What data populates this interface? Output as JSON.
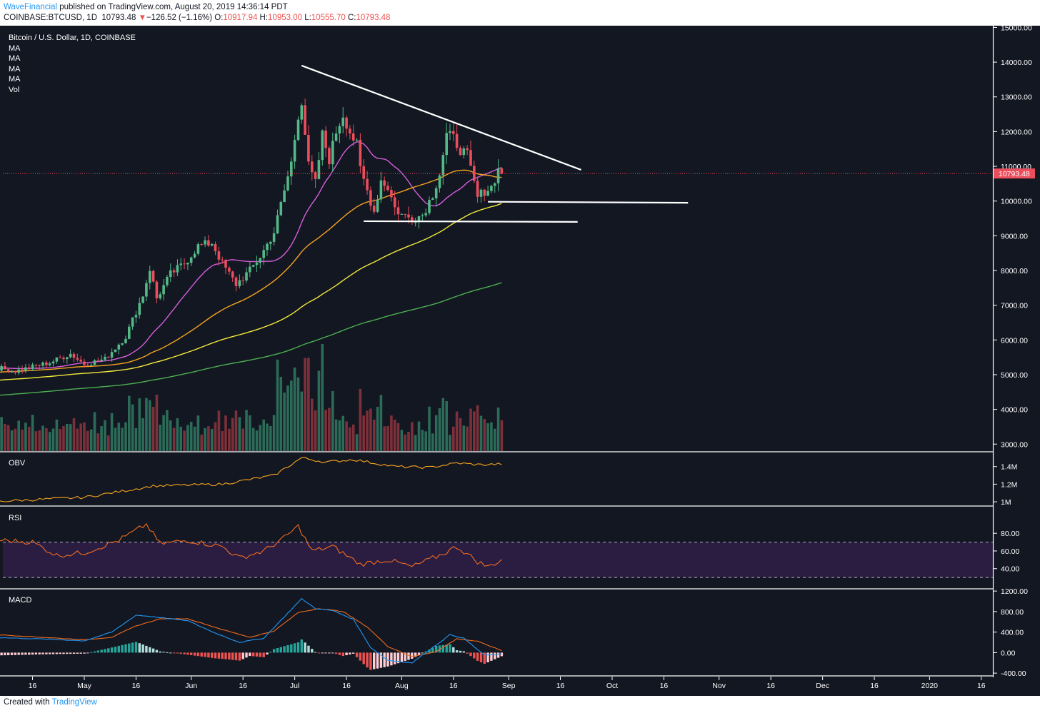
{
  "header": {
    "publisher": "WaveFinancial",
    "published_text": "published on TradingView.com, August 20, 2019 14:36:14 PDT",
    "symbol": "COINBASE:BTCUSD, 1D",
    "last": "10793.48",
    "change_arrow": "▼",
    "change": "−126.52 (−1.16%)",
    "o_label": "O:",
    "o_value": "10917.94",
    "h_label": "H:",
    "h_value": "10953.00",
    "l_label": "L:",
    "l_value": "10555.70",
    "c_label": "C:",
    "c_value": "10793.48"
  },
  "footer": {
    "created_with": "Created with",
    "logo_text": "TradingView"
  },
  "colors": {
    "background": "#131722",
    "up": "#53b987",
    "down": "#eb4d5c",
    "ma_fast": "#d55edb",
    "ma_mid": "#f7a41e",
    "ma_slow": "#f2e93a",
    "ma_long": "#4caf50",
    "obv": "#f7a41e",
    "rsi": "#f26b1d",
    "macd": "#2196f3",
    "signal": "#f26b1d",
    "rsi_band": "#2b1d42"
  },
  "chart_data": {
    "type": "candlestick",
    "legend": [
      "Bitcoin / U.S. Dollar, 1D, COINBASE",
      "MA",
      "MA",
      "MA",
      "MA",
      "Vol"
    ],
    "last_price_label": "10793.48",
    "last_price": 10793.48,
    "price_axis": {
      "range": [
        2800,
        15050
      ],
      "ticks": [
        "15000.00",
        "14000.00",
        "13000.00",
        "12000.00",
        "11000.00",
        "10000.00",
        "9000.00",
        "8000.00",
        "7000.00",
        "6000.00",
        "5000.00",
        "4000.00",
        "3000.00"
      ],
      "tick_values": [
        15000,
        14000,
        13000,
        12000,
        11000,
        10000,
        9000,
        8000,
        7000,
        6000,
        5000,
        4000,
        3000
      ]
    },
    "time_axis": {
      "labels": [
        "16",
        "May",
        "16",
        "Jun",
        "16",
        "Jul",
        "16",
        "Aug",
        "16",
        "Sep",
        "16",
        "Oct",
        "16",
        "Nov",
        "16",
        "Dec",
        "16",
        "2020",
        "16"
      ],
      "label_days": [
        -15,
        0,
        15,
        31,
        46,
        61,
        76,
        92,
        107,
        123,
        138,
        153,
        168,
        184,
        199,
        214,
        229,
        245,
        260
      ],
      "origin": "2019-05-01"
    },
    "price_anchors": [
      {
        "day": -28,
        "price": 5250
      },
      {
        "day": -20,
        "price": 5100
      },
      {
        "day": -10,
        "price": 5350
      },
      {
        "day": -4,
        "price": 5600
      },
      {
        "day": 0,
        "price": 5300
      },
      {
        "day": 6,
        "price": 5450
      },
      {
        "day": 12,
        "price": 6100
      },
      {
        "day": 17,
        "price": 7300
      },
      {
        "day": 19,
        "price": 8050
      },
      {
        "day": 21,
        "price": 7200
      },
      {
        "day": 25,
        "price": 7900
      },
      {
        "day": 29,
        "price": 8200
      },
      {
        "day": 33,
        "price": 8700
      },
      {
        "day": 37,
        "price": 8800
      },
      {
        "day": 40,
        "price": 8200
      },
      {
        "day": 44,
        "price": 7600
      },
      {
        "day": 48,
        "price": 8000
      },
      {
        "day": 51,
        "price": 8400
      },
      {
        "day": 55,
        "price": 9100
      },
      {
        "day": 58,
        "price": 10300
      },
      {
        "day": 60,
        "price": 11100
      },
      {
        "day": 62,
        "price": 12500
      },
      {
        "day": 63,
        "price": 12900
      },
      {
        "day": 65,
        "price": 11000
      },
      {
        "day": 67,
        "price": 10500
      },
      {
        "day": 69,
        "price": 11900
      },
      {
        "day": 71,
        "price": 11200
      },
      {
        "day": 73,
        "price": 12000
      },
      {
        "day": 75,
        "price": 12500
      },
      {
        "day": 77,
        "price": 12000
      },
      {
        "day": 79,
        "price": 11600
      },
      {
        "day": 80,
        "price": 10900
      },
      {
        "day": 82,
        "price": 10300
      },
      {
        "day": 84,
        "price": 9700
      },
      {
        "day": 86,
        "price": 10600
      },
      {
        "day": 88,
        "price": 10400
      },
      {
        "day": 90,
        "price": 9800
      },
      {
        "day": 92,
        "price": 9600
      },
      {
        "day": 95,
        "price": 9500
      },
      {
        "day": 98,
        "price": 9600
      },
      {
        "day": 101,
        "price": 10200
      },
      {
        "day": 103,
        "price": 10800
      },
      {
        "day": 105,
        "price": 11900
      },
      {
        "day": 107,
        "price": 11800
      },
      {
        "day": 109,
        "price": 11500
      },
      {
        "day": 111,
        "price": 11300
      },
      {
        "day": 113,
        "price": 10500
      },
      {
        "day": 114,
        "price": 10100
      },
      {
        "day": 116,
        "price": 10300
      },
      {
        "day": 118,
        "price": 10400
      },
      {
        "day": 120,
        "price": 10900
      },
      {
        "day": 121,
        "price": 10793
      }
    ],
    "ma_periods": [
      20,
      50,
      100,
      200
    ],
    "trendlines": [
      {
        "from": {
          "day": 63,
          "price": 13900
        },
        "to": {
          "day": 144,
          "price": 10900
        }
      },
      {
        "from": {
          "day": 81,
          "price": 9420
        },
        "to": {
          "day": 143,
          "price": 9400
        }
      },
      {
        "from": {
          "day": 117,
          "price": 9980
        },
        "to": {
          "day": 175,
          "price": 9950
        }
      }
    ],
    "obv": {
      "label": "OBV",
      "ticks": [
        "1.4M",
        "1.2M",
        "1M"
      ],
      "tick_values": [
        1.4,
        1.2,
        1.0
      ],
      "range_m": [
        0.96,
        1.56
      ],
      "anchors": [
        {
          "day": -28,
          "value": 1.0
        },
        {
          "day": 0,
          "value": 1.05
        },
        {
          "day": 20,
          "value": 1.18
        },
        {
          "day": 40,
          "value": 1.2
        },
        {
          "day": 55,
          "value": 1.3
        },
        {
          "day": 63,
          "value": 1.5
        },
        {
          "day": 70,
          "value": 1.45
        },
        {
          "day": 78,
          "value": 1.48
        },
        {
          "day": 90,
          "value": 1.4
        },
        {
          "day": 100,
          "value": 1.39
        },
        {
          "day": 108,
          "value": 1.44
        },
        {
          "day": 115,
          "value": 1.42
        },
        {
          "day": 121,
          "value": 1.43
        }
      ]
    },
    "rsi": {
      "label": "RSI",
      "ticks": [
        "80.00",
        "60.00",
        "40.00"
      ],
      "tick_values": [
        80,
        60,
        40
      ],
      "upper_band": 70,
      "lower_band": 30,
      "range": [
        18,
        110
      ],
      "anchors": [
        {
          "day": -28,
          "value": 73
        },
        {
          "day": -15,
          "value": 70
        },
        {
          "day": -8,
          "value": 55
        },
        {
          "day": 0,
          "value": 58
        },
        {
          "day": 10,
          "value": 72
        },
        {
          "day": 18,
          "value": 90
        },
        {
          "day": 22,
          "value": 68
        },
        {
          "day": 30,
          "value": 72
        },
        {
          "day": 40,
          "value": 65
        },
        {
          "day": 45,
          "value": 52
        },
        {
          "day": 52,
          "value": 60
        },
        {
          "day": 58,
          "value": 75
        },
        {
          "day": 62,
          "value": 88
        },
        {
          "day": 66,
          "value": 60
        },
        {
          "day": 72,
          "value": 65
        },
        {
          "day": 80,
          "value": 45
        },
        {
          "day": 88,
          "value": 50
        },
        {
          "day": 95,
          "value": 42
        },
        {
          "day": 103,
          "value": 55
        },
        {
          "day": 108,
          "value": 65
        },
        {
          "day": 114,
          "value": 48
        },
        {
          "day": 117,
          "value": 42
        },
        {
          "day": 121,
          "value": 50
        }
      ]
    },
    "macd": {
      "label": "MACD",
      "ticks": [
        "1200.00",
        "800.00",
        "400.00",
        "0.00",
        "-400.00"
      ],
      "tick_values": [
        1200,
        800,
        400,
        0,
        -400
      ],
      "range": [
        -440,
        1230
      ],
      "macd_anchors": [
        {
          "day": -28,
          "value": 300
        },
        {
          "day": -10,
          "value": 260
        },
        {
          "day": 0,
          "value": 230
        },
        {
          "day": 8,
          "value": 400
        },
        {
          "day": 15,
          "value": 730
        },
        {
          "day": 20,
          "value": 700
        },
        {
          "day": 30,
          "value": 620
        },
        {
          "day": 38,
          "value": 380
        },
        {
          "day": 45,
          "value": 200
        },
        {
          "day": 52,
          "value": 280
        },
        {
          "day": 58,
          "value": 700
        },
        {
          "day": 63,
          "value": 1050
        },
        {
          "day": 67,
          "value": 860
        },
        {
          "day": 72,
          "value": 820
        },
        {
          "day": 78,
          "value": 650
        },
        {
          "day": 83,
          "value": 100
        },
        {
          "day": 88,
          "value": -150
        },
        {
          "day": 95,
          "value": -200
        },
        {
          "day": 100,
          "value": 50
        },
        {
          "day": 106,
          "value": 350
        },
        {
          "day": 110,
          "value": 280
        },
        {
          "day": 116,
          "value": -50
        },
        {
          "day": 121,
          "value": -30
        }
      ],
      "signal_anchors": [
        {
          "day": -28,
          "value": 360
        },
        {
          "day": -10,
          "value": 290
        },
        {
          "day": 0,
          "value": 250
        },
        {
          "day": 8,
          "value": 300
        },
        {
          "day": 15,
          "value": 520
        },
        {
          "day": 22,
          "value": 660
        },
        {
          "day": 30,
          "value": 660
        },
        {
          "day": 40,
          "value": 450
        },
        {
          "day": 48,
          "value": 300
        },
        {
          "day": 55,
          "value": 420
        },
        {
          "day": 62,
          "value": 780
        },
        {
          "day": 68,
          "value": 860
        },
        {
          "day": 75,
          "value": 800
        },
        {
          "day": 82,
          "value": 500
        },
        {
          "day": 88,
          "value": 120
        },
        {
          "day": 95,
          "value": -80
        },
        {
          "day": 102,
          "value": 20
        },
        {
          "day": 108,
          "value": 270
        },
        {
          "day": 114,
          "value": 220
        },
        {
          "day": 121,
          "value": 40
        }
      ]
    }
  }
}
